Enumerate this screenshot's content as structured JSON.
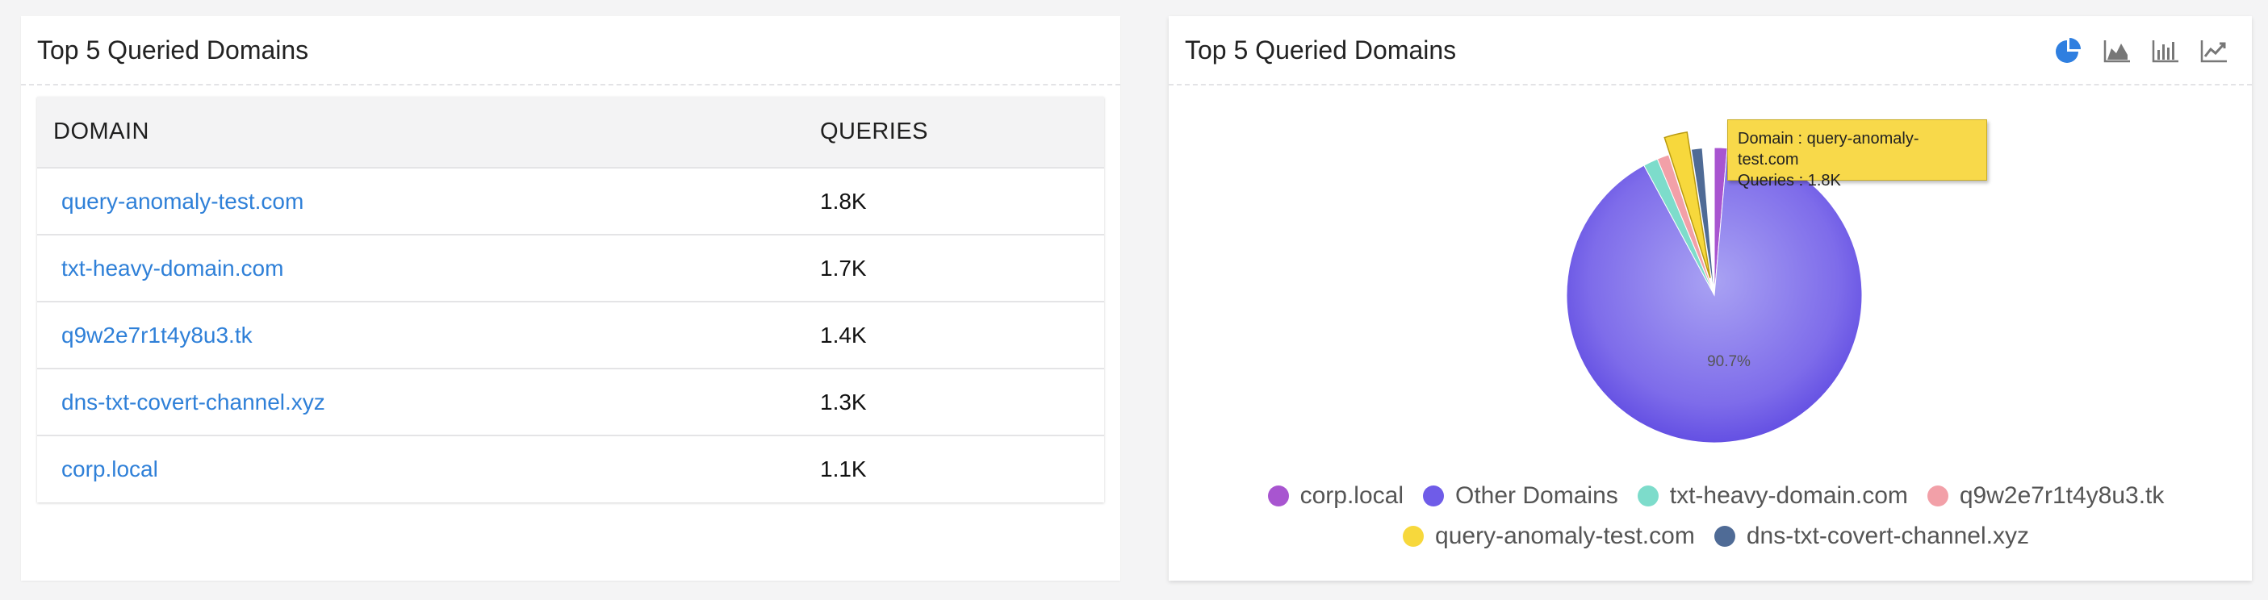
{
  "table_card": {
    "title": "Top 5 Queried Domains",
    "columns": [
      "DOMAIN",
      "QUERIES"
    ],
    "rows": [
      {
        "domain": "query-anomaly-test.com",
        "queries": "1.8K"
      },
      {
        "domain": "txt-heavy-domain.com",
        "queries": "1.7K"
      },
      {
        "domain": "q9w2e7r1t4y8u3.tk",
        "queries": "1.4K"
      },
      {
        "domain": "dns-txt-covert-channel.xyz",
        "queries": "1.3K"
      },
      {
        "domain": "corp.local",
        "queries": "1.1K"
      }
    ]
  },
  "chart_card": {
    "title": "Top 5 Queried Domains",
    "toolbar": [
      "pie-chart-icon",
      "area-chart-icon",
      "bar-chart-icon",
      "line-chart-icon"
    ],
    "tooltip": {
      "domain_line": "Domain : query-anomaly-test.com",
      "queries_line": "Queries : 1.8K"
    }
  },
  "chart_data": {
    "type": "pie",
    "title": "",
    "legend_position": "bottom",
    "slices": [
      {
        "label": "corp.local",
        "percent": 1.4,
        "color": "#a855d0"
      },
      {
        "label": "Other Domains",
        "percent": 90.7,
        "color": "#6f5ce8",
        "data_label": "90.7%"
      },
      {
        "label": "txt-heavy-domain.com",
        "percent": 1.6,
        "color": "#7ddccb"
      },
      {
        "label": "q9w2e7r1t4y8u3.tk",
        "percent": 1.3,
        "color": "#f2a0a8"
      },
      {
        "label": "query-anomaly-test.com",
        "percent": 2.5,
        "color": "#f7d83c",
        "exploded": true
      },
      {
        "label": "dns-txt-covert-channel.xyz",
        "percent": 1.2,
        "color": "#4f6b96"
      }
    ],
    "legend_rows": [
      [
        0,
        1,
        2,
        3
      ],
      [
        4,
        5
      ]
    ]
  }
}
